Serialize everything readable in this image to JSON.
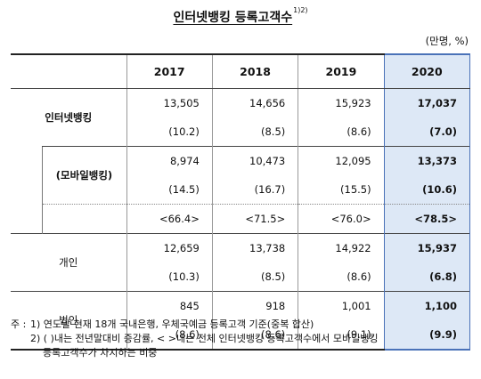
{
  "title": "인터넷뱅킹 등록고객수",
  "title_note": "1)2)",
  "unit": "(만명, %)",
  "years": [
    "2017",
    "2018",
    "2019",
    "2020"
  ],
  "rows": {
    "internet": {
      "label": "인터넷뱅킹",
      "values": [
        "13,505",
        "14,656",
        "15,923",
        "17,037"
      ],
      "growth": [
        "(10.2)",
        "(8.5)",
        "(8.6)",
        "(7.0)"
      ]
    },
    "mobile": {
      "label": "(모바일뱅킹)",
      "values": [
        "8,974",
        "10,473",
        "12,095",
        "13,373"
      ],
      "growth": [
        "(14.5)",
        "(16.7)",
        "(15.5)",
        "(10.6)"
      ],
      "share": [
        "<66.4>",
        "<71.5>",
        "<76.0>",
        "<78.5>"
      ]
    },
    "individual": {
      "label": "개인",
      "values": [
        "12,659",
        "13,738",
        "14,922",
        "15,937"
      ],
      "growth": [
        "(10.3)",
        "(8.5)",
        "(8.6)",
        "(6.8)"
      ]
    },
    "corporate": {
      "label": "법인",
      "values": [
        "845",
        "918",
        "1,001",
        "1,100"
      ],
      "growth": [
        "(8.6)",
        "(8.6)",
        "(9.1)",
        "(9.9)"
      ]
    }
  },
  "notes": {
    "prefix": "주 :",
    "n1": "1)  연도말 현재 18개 국내은행, 우체국예금 등록고객 기준(중복 합산)",
    "n2a": "2)  (  )내는 전년말대비 증감률, < >내는 전체 인터넷뱅킹 등록고객수에서 모바일뱅킹",
    "n2b": "등록고객수가 차지하는 비중"
  },
  "colors": {
    "highlight": "#dde8f6",
    "highlight_border": "#4a72b8"
  }
}
